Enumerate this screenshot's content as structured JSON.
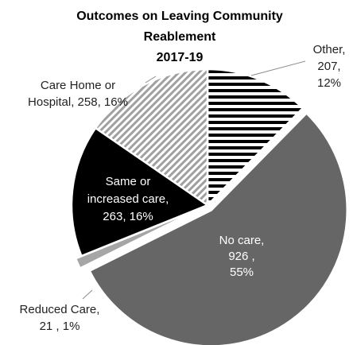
{
  "chart_data": {
    "type": "pie",
    "title_lines": [
      "Outcomes on Leaving Community",
      "Reablement",
      "2017-19"
    ],
    "slices": [
      {
        "label": "Other",
        "value": 207,
        "percent": "12%",
        "label_lines": [
          "Other,",
          "207,",
          "12%"
        ],
        "fill": "stripes-horizontal",
        "text_color": "#222222"
      },
      {
        "label": "No care",
        "value": 926,
        "percent": "55%",
        "label_lines": [
          "No care,",
          "926 ,",
          "55%"
        ],
        "fill": "#666666",
        "text_color": "#ffffff"
      },
      {
        "label": "Reduced Care",
        "value": 21,
        "percent": "1%",
        "label_lines": [
          "Reduced Care,",
          "21 , 1%"
        ],
        "fill": "#a6a6a6",
        "text_color": "#222222"
      },
      {
        "label": "Same or increased care",
        "value": 263,
        "percent": "16%",
        "label_lines": [
          "Same or",
          "increased care,",
          "263, 16%"
        ],
        "fill": "#000000",
        "text_color": "#ffffff"
      },
      {
        "label": "Care Home or Hospital",
        "value": 258,
        "percent": "16%",
        "label_lines": [
          "Care Home or",
          "Hospital, 258, 16%"
        ],
        "fill": "stripes-diagonal",
        "text_color": "#222222"
      }
    ]
  }
}
